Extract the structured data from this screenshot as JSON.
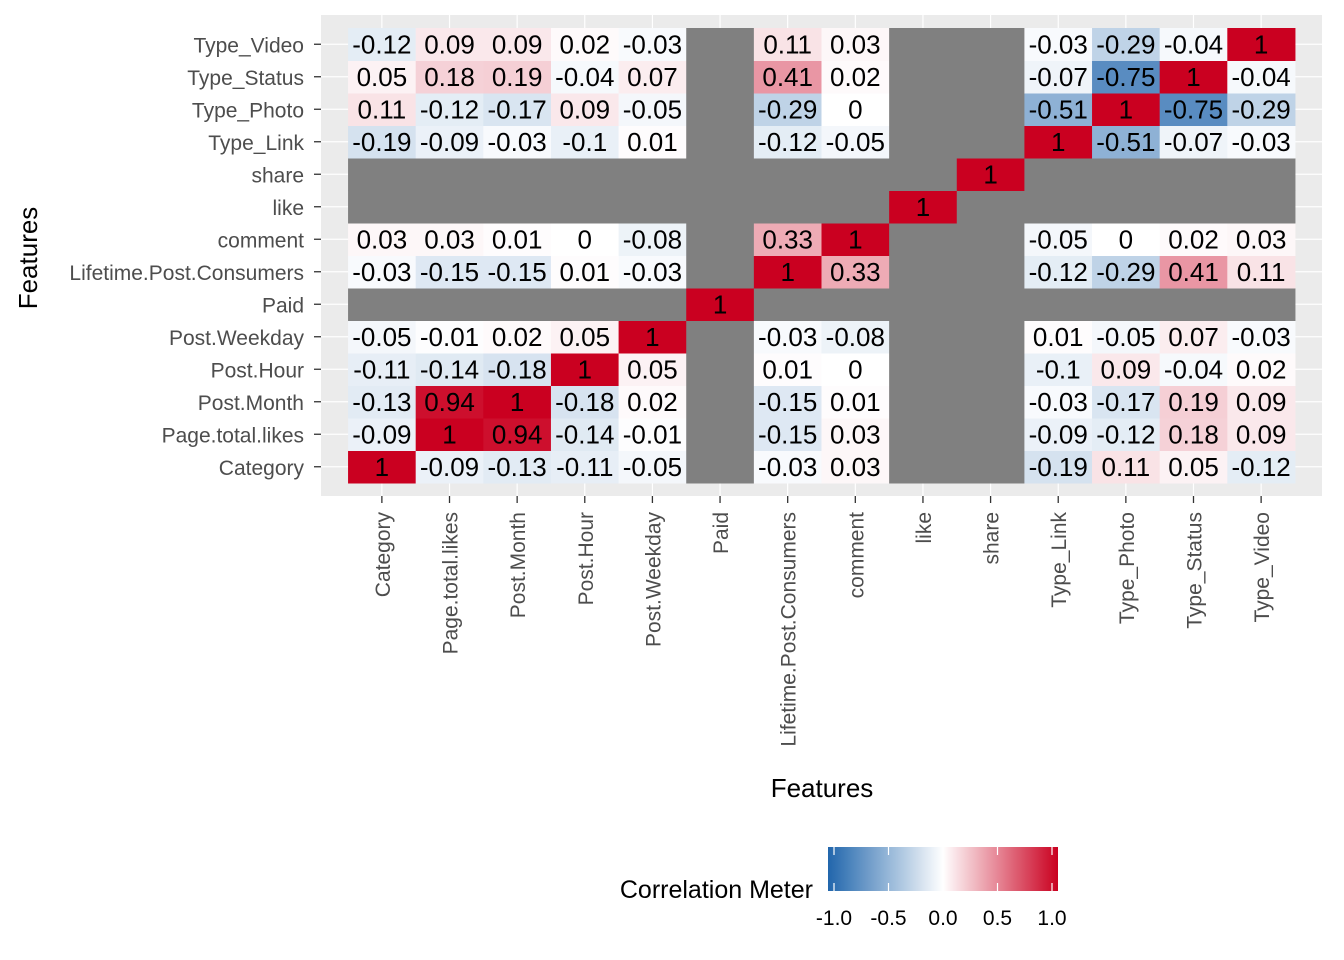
{
  "chart_data": {
    "type": "heatmap",
    "xlabel": "Features",
    "ylabel": "Features",
    "features": [
      "Category",
      "Page.total.likes",
      "Post.Month",
      "Post.Hour",
      "Post.Weekday",
      "Paid",
      "Lifetime.Post.Consumers",
      "comment",
      "like",
      "share",
      "Type_Link",
      "Type_Photo",
      "Type_Status",
      "Type_Video"
    ],
    "values": [
      [
        1,
        -0.09,
        -0.13,
        -0.11,
        -0.05,
        null,
        -0.03,
        0.03,
        null,
        null,
        -0.19,
        0.11,
        0.05,
        -0.12
      ],
      [
        -0.09,
        1,
        0.94,
        -0.14,
        -0.01,
        null,
        -0.15,
        0.03,
        null,
        null,
        -0.09,
        -0.12,
        0.18,
        0.09
      ],
      [
        -0.13,
        0.94,
        1,
        -0.18,
        0.02,
        null,
        -0.15,
        0.01,
        null,
        null,
        -0.03,
        -0.17,
        0.19,
        0.09
      ],
      [
        -0.11,
        -0.14,
        -0.18,
        1,
        0.05,
        null,
        0.01,
        0,
        null,
        null,
        -0.1,
        0.09,
        -0.04,
        0.02
      ],
      [
        -0.05,
        -0.01,
        0.02,
        0.05,
        1,
        null,
        -0.03,
        -0.08,
        null,
        null,
        0.01,
        -0.05,
        0.07,
        -0.03
      ],
      [
        null,
        null,
        null,
        null,
        null,
        1,
        null,
        null,
        null,
        null,
        null,
        null,
        null,
        null
      ],
      [
        -0.03,
        -0.15,
        -0.15,
        0.01,
        -0.03,
        null,
        1,
        0.33,
        null,
        null,
        -0.12,
        -0.29,
        0.41,
        0.11
      ],
      [
        0.03,
        0.03,
        0.01,
        0,
        -0.08,
        null,
        0.33,
        1,
        null,
        null,
        -0.05,
        0,
        0.02,
        0.03
      ],
      [
        null,
        null,
        null,
        null,
        null,
        null,
        null,
        null,
        1,
        null,
        null,
        null,
        null,
        null
      ],
      [
        null,
        null,
        null,
        null,
        null,
        null,
        null,
        null,
        null,
        1,
        null,
        null,
        null,
        null
      ],
      [
        -0.19,
        -0.09,
        -0.03,
        -0.1,
        0.01,
        null,
        -0.12,
        -0.05,
        null,
        null,
        1,
        -0.51,
        -0.07,
        -0.03
      ],
      [
        0.11,
        -0.12,
        -0.17,
        0.09,
        -0.05,
        null,
        -0.29,
        0,
        null,
        null,
        -0.51,
        1,
        -0.75,
        -0.29
      ],
      [
        0.05,
        0.18,
        0.19,
        -0.04,
        0.07,
        null,
        0.41,
        0.02,
        null,
        null,
        -0.07,
        -0.75,
        1,
        -0.04
      ],
      [
        -0.12,
        0.09,
        0.09,
        0.02,
        -0.03,
        null,
        0.11,
        0.03,
        null,
        null,
        -0.03,
        -0.29,
        -0.04,
        1
      ]
    ],
    "na_color": "#808080",
    "color_scale": {
      "low": "#2166ac",
      "mid": "#ffffff",
      "high": "#ca0020",
      "limits": [
        -1,
        1
      ]
    },
    "legend": {
      "title": "Correlation Meter",
      "position": "bottom",
      "breaks": [
        -1.0,
        -0.5,
        0.0,
        0.5,
        1.0
      ],
      "break_labels": [
        "-1.0",
        "-0.5",
        "0.0",
        "0.5",
        "1.0"
      ]
    },
    "panel_background": "#ebebeb",
    "grid": true
  }
}
